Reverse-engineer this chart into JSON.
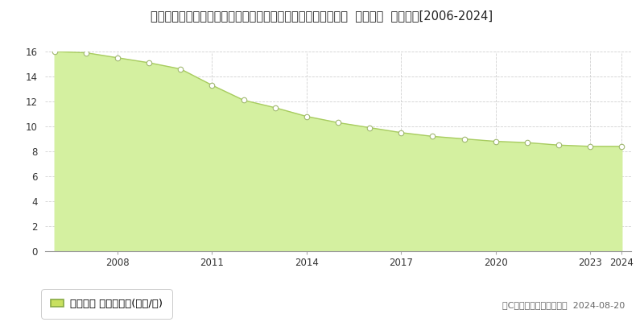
{
  "title": "佐賀県佐賀市諸富町大字山領字山領分四本谷一角８０６番６外  地価公示  地価推移[2006-2024]",
  "years": [
    2006,
    2007,
    2008,
    2009,
    2010,
    2011,
    2012,
    2013,
    2014,
    2015,
    2016,
    2017,
    2018,
    2019,
    2020,
    2021,
    2022,
    2023,
    2024
  ],
  "values": [
    16.0,
    15.9,
    15.5,
    15.1,
    14.6,
    13.3,
    12.1,
    11.5,
    10.8,
    10.3,
    9.9,
    9.5,
    9.2,
    9.0,
    8.8,
    8.7,
    8.5,
    8.4,
    8.4
  ],
  "fill_color": "#d4f0a0",
  "line_color": "#a8cc60",
  "marker_face_color": "#ffffff",
  "marker_edge_color": "#a0b870",
  "ylim": [
    0,
    16
  ],
  "yticks": [
    0,
    2,
    4,
    6,
    8,
    10,
    12,
    14,
    16
  ],
  "xtick_labels": [
    "2008",
    "2011",
    "2014",
    "2017",
    "2020",
    "2023",
    "2024"
  ],
  "xtick_years": [
    2008,
    2011,
    2014,
    2017,
    2020,
    2023,
    2024
  ],
  "background_color": "#ffffff",
  "grid_color": "#cccccc",
  "legend_label": "地価公示 平均坪単価(万円/坪)",
  "legend_color": "#c8e060",
  "copyright_text": "（C）土地価格ドットコム  2024-08-20",
  "title_fontsize": 10.5,
  "axis_fontsize": 8.5,
  "legend_fontsize": 9.5
}
